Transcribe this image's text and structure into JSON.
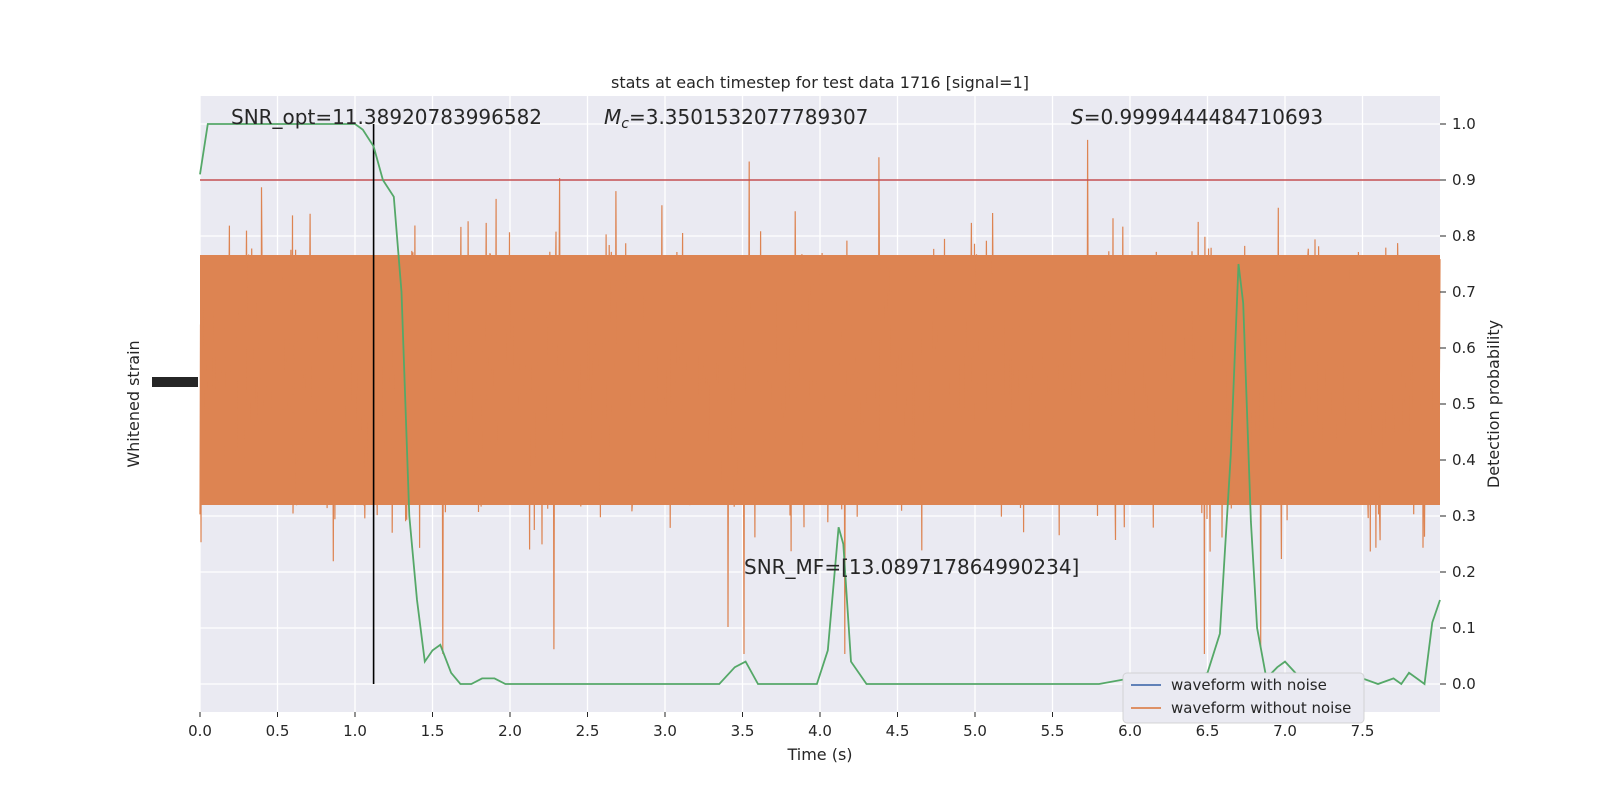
{
  "chart_data": {
    "type": "line",
    "title": "stats at each timestep for test data 1716 [signal=1]",
    "xlabel": "Time (s)",
    "ylabel_left": "Whitened strain",
    "ylabel_right": "Detection probability",
    "xlim": [
      0.0,
      8.0
    ],
    "ylim_right": [
      -0.05,
      1.05
    ],
    "x_ticks": [
      "0.0",
      "0.5",
      "1.0",
      "1.5",
      "2.0",
      "2.5",
      "3.0",
      "3.5",
      "4.0",
      "4.5",
      "5.0",
      "5.5",
      "6.0",
      "6.5",
      "7.0",
      "7.5"
    ],
    "x_tick_values": [
      0.0,
      0.5,
      1.0,
      1.5,
      2.0,
      2.5,
      3.0,
      3.5,
      4.0,
      4.5,
      5.0,
      5.5,
      6.0,
      6.5,
      7.0,
      7.5
    ],
    "y_ticks_right": [
      "0.0",
      "0.1",
      "0.2",
      "0.3",
      "0.4",
      "0.5",
      "0.6",
      "0.7",
      "0.8",
      "0.9",
      "1.0"
    ],
    "y_tick_values_right": [
      0.0,
      0.1,
      0.2,
      0.3,
      0.4,
      0.5,
      0.6,
      0.7,
      0.8,
      0.9,
      1.0
    ],
    "grid": true,
    "legend_position": "lower-right",
    "annotations": {
      "snr_opt": "SNR_opt=11.38920783996582",
      "mc_prefix": "M",
      "mc_sub": "c",
      "mc_value": "=3.3501532077789307",
      "s_prefix": "S",
      "s_value": "=0.9999444484710693",
      "snr_mf": "SNR_MF=[13.089717864990234]"
    },
    "threshold": 0.9,
    "marker_time": 1.12,
    "series": [
      {
        "name": "waveform with noise",
        "color": "#4c72b0"
      },
      {
        "name": "waveform without noise",
        "color": "#dd8452"
      }
    ],
    "probability": {
      "color": "#55a868",
      "x": [
        0.0,
        0.05,
        0.1,
        0.2,
        0.3,
        0.4,
        0.5,
        0.6,
        0.7,
        0.8,
        0.9,
        1.0,
        1.05,
        1.12,
        1.18,
        1.25,
        1.3,
        1.35,
        1.4,
        1.45,
        1.5,
        1.55,
        1.62,
        1.68,
        1.75,
        1.82,
        1.9,
        1.97,
        2.05,
        2.2,
        2.4,
        2.6,
        2.8,
        3.0,
        3.2,
        3.35,
        3.45,
        3.52,
        3.6,
        3.75,
        3.9,
        3.98,
        4.05,
        4.12,
        4.15,
        4.2,
        4.3,
        4.5,
        4.8,
        5.0,
        5.5,
        5.8,
        6.0,
        6.4,
        6.5,
        6.58,
        6.65,
        6.7,
        6.73,
        6.78,
        6.82,
        6.88,
        6.95,
        7.0,
        7.1,
        7.3,
        7.5,
        7.6,
        7.7,
        7.75,
        7.8,
        7.85,
        7.9,
        7.95,
        8.0
      ],
      "y": [
        0.91,
        1.0,
        1.0,
        1.0,
        1.0,
        1.0,
        1.0,
        1.0,
        1.0,
        1.0,
        1.0,
        1.0,
        0.99,
        0.96,
        0.9,
        0.87,
        0.7,
        0.3,
        0.15,
        0.04,
        0.06,
        0.07,
        0.02,
        0.0,
        0.0,
        0.01,
        0.01,
        0.0,
        0.0,
        0.0,
        0.0,
        0.0,
        0.0,
        0.0,
        0.0,
        0.0,
        0.03,
        0.04,
        0.0,
        0.0,
        0.0,
        0.0,
        0.06,
        0.28,
        0.25,
        0.04,
        0.0,
        0.0,
        0.0,
        0.0,
        0.0,
        0.0,
        0.01,
        0.01,
        0.02,
        0.09,
        0.41,
        0.75,
        0.68,
        0.29,
        0.1,
        0.01,
        0.03,
        0.04,
        0.01,
        0.0,
        0.01,
        0.0,
        0.01,
        0.0,
        0.02,
        0.01,
        0.0,
        0.11,
        0.15
      ]
    }
  }
}
